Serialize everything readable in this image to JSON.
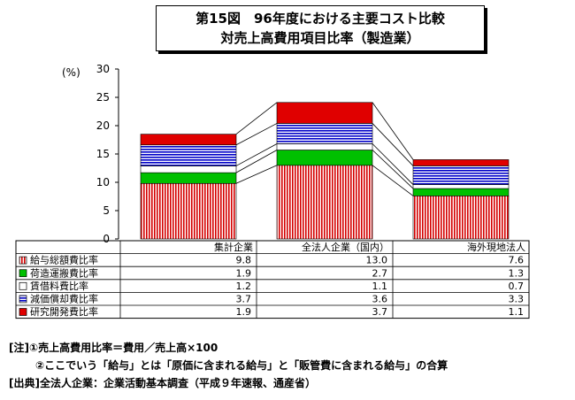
{
  "title": {
    "line1": "第15図　96年度における主要コスト比較",
    "line2": "対売上高費用項目比率（製造業）"
  },
  "chart_data": {
    "type": "bar",
    "stacked": true,
    "ylabel": "(%)",
    "ylim": [
      0,
      30
    ],
    "yticks": [
      "0",
      "5",
      "10",
      "15",
      "20",
      "25",
      "30"
    ],
    "categories": [
      "集計企業",
      "全法人企業（国内）",
      "海外現地法人"
    ],
    "series": [
      {
        "name": "給与総額費比率",
        "values": [
          9.8,
          13.0,
          7.6
        ],
        "display": [
          "9.8",
          "13.0",
          "7.6"
        ],
        "color": "#d40000",
        "pattern": "red-vertical-stripes"
      },
      {
        "name": "荷造運搬費比率",
        "values": [
          1.9,
          2.7,
          1.3
        ],
        "display": [
          "1.9",
          "2.7",
          "1.3"
        ],
        "color": "#00c000",
        "pattern": "solid-green"
      },
      {
        "name": "賃借料費比率",
        "values": [
          1.2,
          1.1,
          0.7
        ],
        "display": [
          "1.2",
          "1.1",
          "0.7"
        ],
        "color": "#ffffff",
        "pattern": "white"
      },
      {
        "name": "減価償却費比率",
        "values": [
          3.7,
          3.6,
          3.3
        ],
        "display": [
          "3.7",
          "3.6",
          "3.3"
        ],
        "color": "#0000c8",
        "pattern": "blue-horizontal-stripes"
      },
      {
        "name": "研究開発費比率",
        "values": [
          1.9,
          3.7,
          1.1
        ],
        "display": [
          "1.9",
          "3.7",
          "1.1"
        ],
        "color": "#e00000",
        "pattern": "solid-red"
      }
    ],
    "grid": false
  },
  "notes": {
    "note1": "[注]①売上高費用比率＝費用／売上高×100",
    "note2": "②ここでいう「給与」とは「原価に含まれる給与」と「販管費に含まれる給与」の合算",
    "source": "[出典]全法人企業：企業活動基本調査（平成９年速報、通産省）"
  }
}
